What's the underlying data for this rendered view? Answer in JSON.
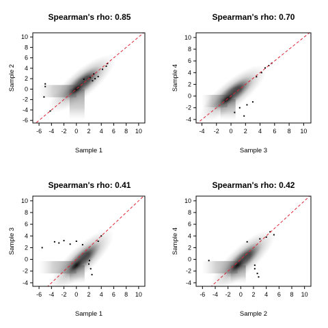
{
  "chart_data": [
    {
      "type": "scatter",
      "title": "Spearman's rho: 0.85",
      "xlabel": "Sample 1",
      "ylabel": "Sample 2",
      "xlim": [
        -7,
        11
      ],
      "ylim": [
        -6.5,
        10.8
      ],
      "xticks": [
        -6,
        -4,
        -2,
        0,
        2,
        4,
        6,
        8,
        10
      ],
      "yticks": [
        -6,
        -4,
        -2,
        0,
        2,
        4,
        6,
        8,
        10
      ],
      "reference_line": {
        "slope": 1,
        "intercept": 0,
        "color": "#dd2233"
      },
      "density_center": [
        0,
        0
      ],
      "points": [
        [
          2.6,
          1.6
        ],
        [
          3.0,
          2.0
        ],
        [
          3.5,
          2.4
        ],
        [
          2.8,
          2.9
        ],
        [
          4.2,
          3.8
        ],
        [
          4.8,
          4.4
        ],
        [
          5.0,
          4.9
        ],
        [
          -5,
          1
        ],
        [
          -5,
          0.5
        ],
        [
          -4.2,
          -4.2
        ],
        [
          -5.2,
          -1.5
        ],
        [
          1.2,
          1.9
        ],
        [
          2.2,
          2.2
        ]
      ]
    },
    {
      "type": "scatter",
      "title": "Spearman's rho: 0.70",
      "xlabel": "Sample 3",
      "ylabel": "Sample 4",
      "xlim": [
        -4.8,
        11
      ],
      "ylim": [
        -4.6,
        10.8
      ],
      "xticks": [
        -4,
        -2,
        0,
        2,
        4,
        6,
        8,
        10
      ],
      "yticks": [
        -4,
        -2,
        0,
        2,
        4,
        6,
        8,
        10
      ],
      "reference_line": {
        "slope": 1,
        "intercept": 0,
        "color": "#dd2233"
      },
      "density_center": [
        -0.5,
        -0.5
      ],
      "points": [
        [
          4.2,
          4.0
        ],
        [
          4.7,
          4.8
        ],
        [
          5.2,
          5.2
        ],
        [
          5.6,
          5.6
        ],
        [
          3.5,
          3.3
        ],
        [
          0.5,
          -2.8
        ],
        [
          1.2,
          -2.0
        ],
        [
          2.2,
          -1.5
        ],
        [
          3.0,
          -1.0
        ],
        [
          1.8,
          -3.4
        ]
      ]
    },
    {
      "type": "scatter",
      "title": "Spearman's rho: 0.41",
      "xlabel": "Sample 1",
      "ylabel": "Sample 3",
      "xlim": [
        -7,
        11
      ],
      "ylim": [
        -4.6,
        10.8
      ],
      "xticks": [
        -6,
        -4,
        -2,
        0,
        2,
        4,
        6,
        8,
        10
      ],
      "yticks": [
        -4,
        -2,
        0,
        2,
        4,
        6,
        8,
        10
      ],
      "reference_line": {
        "slope": 1,
        "intercept": 0,
        "color": "#dd2233"
      },
      "density_center": [
        0,
        -1
      ],
      "points": [
        [
          -3.5,
          3.0
        ],
        [
          -2.8,
          2.8
        ],
        [
          -2.0,
          3.2
        ],
        [
          -1.0,
          2.6
        ],
        [
          0.0,
          3.1
        ],
        [
          1.0,
          2.5
        ],
        [
          3.5,
          3.1
        ],
        [
          4.0,
          4.0
        ],
        [
          -5.5,
          2.0
        ],
        [
          2.0,
          -0.8
        ],
        [
          2.3,
          -1.6
        ],
        [
          2.5,
          -2.6
        ],
        [
          2.1,
          -0.2
        ]
      ]
    },
    {
      "type": "scatter",
      "title": "Spearman's rho: 0.42",
      "xlabel": "Sample 2",
      "ylabel": "Sample 4",
      "xlim": [
        -7,
        11
      ],
      "ylim": [
        -4.6,
        10.8
      ],
      "xticks": [
        -6,
        -4,
        -2,
        0,
        2,
        4,
        6,
        8,
        10
      ],
      "yticks": [
        -4,
        -2,
        0,
        2,
        4,
        6,
        8,
        10
      ],
      "reference_line": {
        "slope": 1,
        "intercept": 0,
        "color": "#dd2233"
      },
      "density_center": [
        -0.5,
        -1
      ],
      "points": [
        [
          3.0,
          3.5
        ],
        [
          4.0,
          3.8
        ],
        [
          4.6,
          4.7
        ],
        [
          5.2,
          4.2
        ],
        [
          1.0,
          3.0
        ],
        [
          -5.0,
          -0.2
        ],
        [
          2.2,
          -1.0
        ],
        [
          2.6,
          -2.4
        ],
        [
          2.8,
          -3.0
        ],
        [
          2.2,
          -1.6
        ]
      ]
    }
  ]
}
